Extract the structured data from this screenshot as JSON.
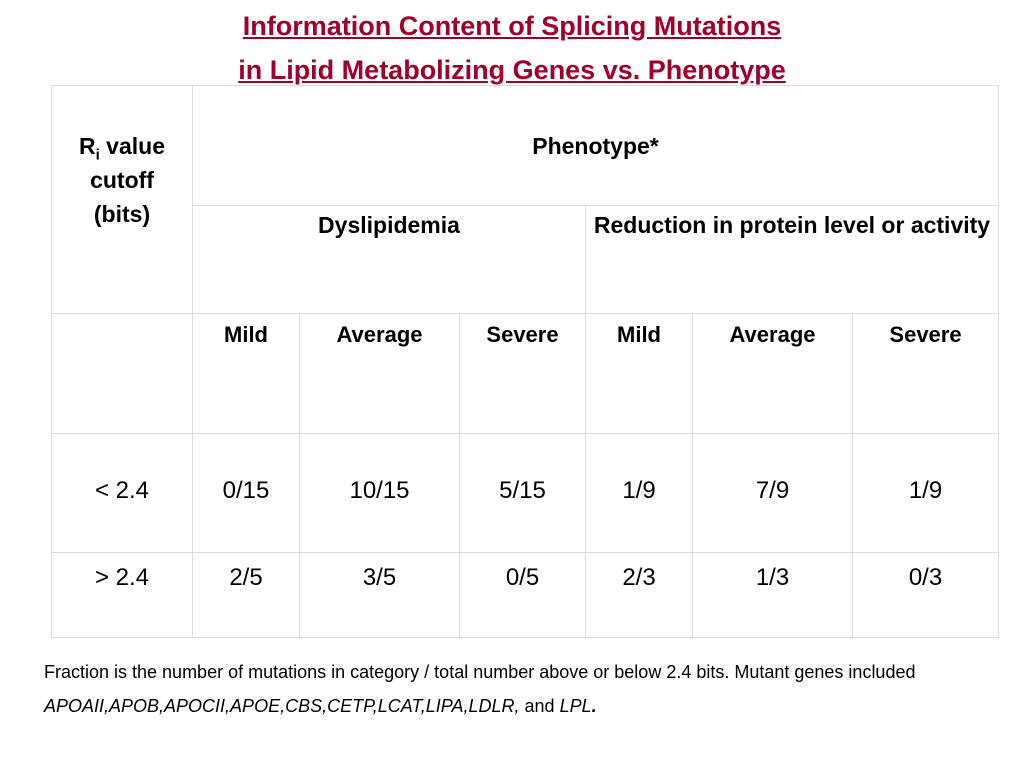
{
  "title": {
    "line1": "Information Content of Splicing Mutations",
    "line2": "in Lipid Metabolizing Genes vs. Phenotype"
  },
  "table": {
    "ri_header": {
      "r": "R",
      "sub": "i",
      "rest": " value",
      "line2": "cutoff",
      "line3": "(bits)"
    },
    "phenotype_header": "Phenotype*",
    "groups": [
      "Dyslipidemia",
      "Reduction in protein level or activity"
    ],
    "severities": [
      "Mild",
      "Average",
      "Severe",
      "Mild",
      "Average",
      "Severe"
    ],
    "rows": [
      {
        "cutoff": "< 2.4",
        "values": [
          "0/15",
          "10/15",
          "5/15",
          "1/9",
          "7/9",
          "1/9"
        ]
      },
      {
        "cutoff": "> 2.4",
        "values": [
          "2/5",
          "3/5",
          "0/5",
          "2/3",
          "1/3",
          "0/3"
        ]
      }
    ]
  },
  "footnote": {
    "text": "Fraction is the number of mutations in category / total number above or below  2.4 bits. Mutant genes included ",
    "genes": "APOAII,APOB,APOCII,APOE,CBS,CETP,LCAT,LIPA,LDLR,",
    "and": " and ",
    "last": "LPL",
    "period": "."
  }
}
